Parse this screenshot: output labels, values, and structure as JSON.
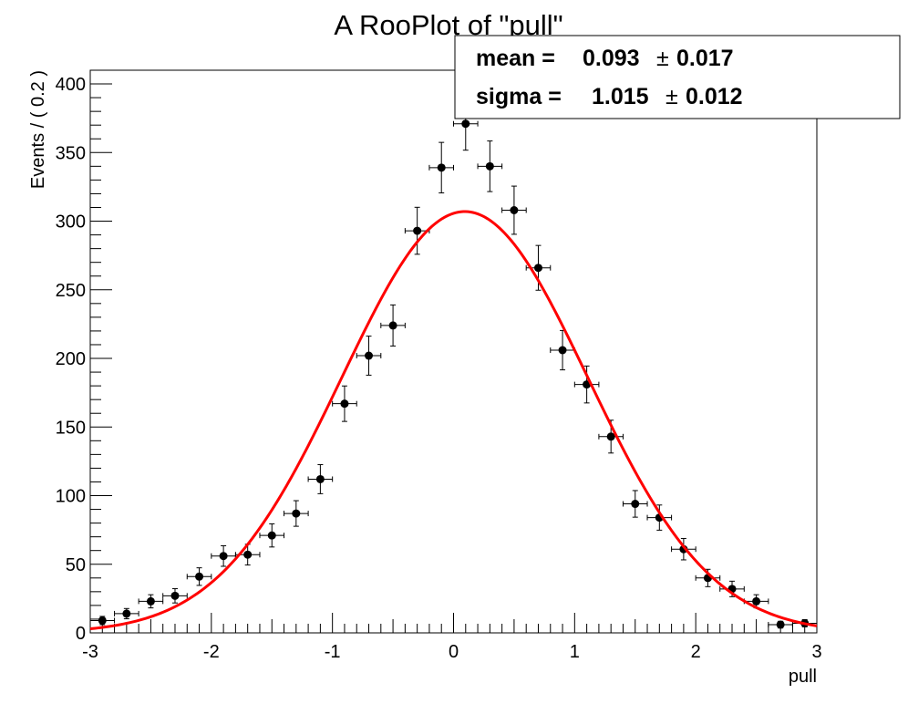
{
  "chart_data": {
    "type": "scatter",
    "title": "A RooPlot of \"pull\"",
    "xlabel": "pull",
    "ylabel": "Events / ( 0.2 )",
    "xlim": [
      -3,
      3
    ],
    "ylim": [
      0,
      410
    ],
    "x_ticks": [
      -3,
      -2,
      -1,
      0,
      1,
      2,
      3
    ],
    "y_ticks": [
      0,
      50,
      100,
      150,
      200,
      250,
      300,
      350,
      400
    ],
    "bin_width": 0.2,
    "series": [
      {
        "type": "points",
        "color": "#000000",
        "x": [
          -2.9,
          -2.7,
          -2.5,
          -2.3,
          -2.1,
          -1.9,
          -1.7,
          -1.5,
          -1.3,
          -1.1,
          -0.9,
          -0.7,
          -0.5,
          -0.3,
          -0.1,
          0.1,
          0.3,
          0.5,
          0.7,
          0.9,
          1.1,
          1.3,
          1.5,
          1.7,
          1.9,
          2.1,
          2.3,
          2.5,
          2.7,
          2.9
        ],
        "y": [
          9,
          14,
          23,
          27,
          41,
          56,
          57,
          71,
          87,
          112,
          167,
          202,
          224,
          293,
          339,
          371,
          340,
          308,
          266,
          206,
          181,
          143,
          94,
          84,
          61,
          40,
          32,
          23,
          6,
          7
        ]
      },
      {
        "type": "line",
        "color": "#ff0000",
        "fit": "gaussian",
        "mean": 0.093,
        "sigma": 1.015,
        "amplitude": 307
      }
    ],
    "stats": {
      "mean_label": "mean =",
      "mean_value": "0.093",
      "mean_error": "0.017",
      "sigma_label": "sigma =",
      "sigma_value": "1.015",
      "sigma_error": "0.012",
      "pm_symbol": "±"
    }
  }
}
